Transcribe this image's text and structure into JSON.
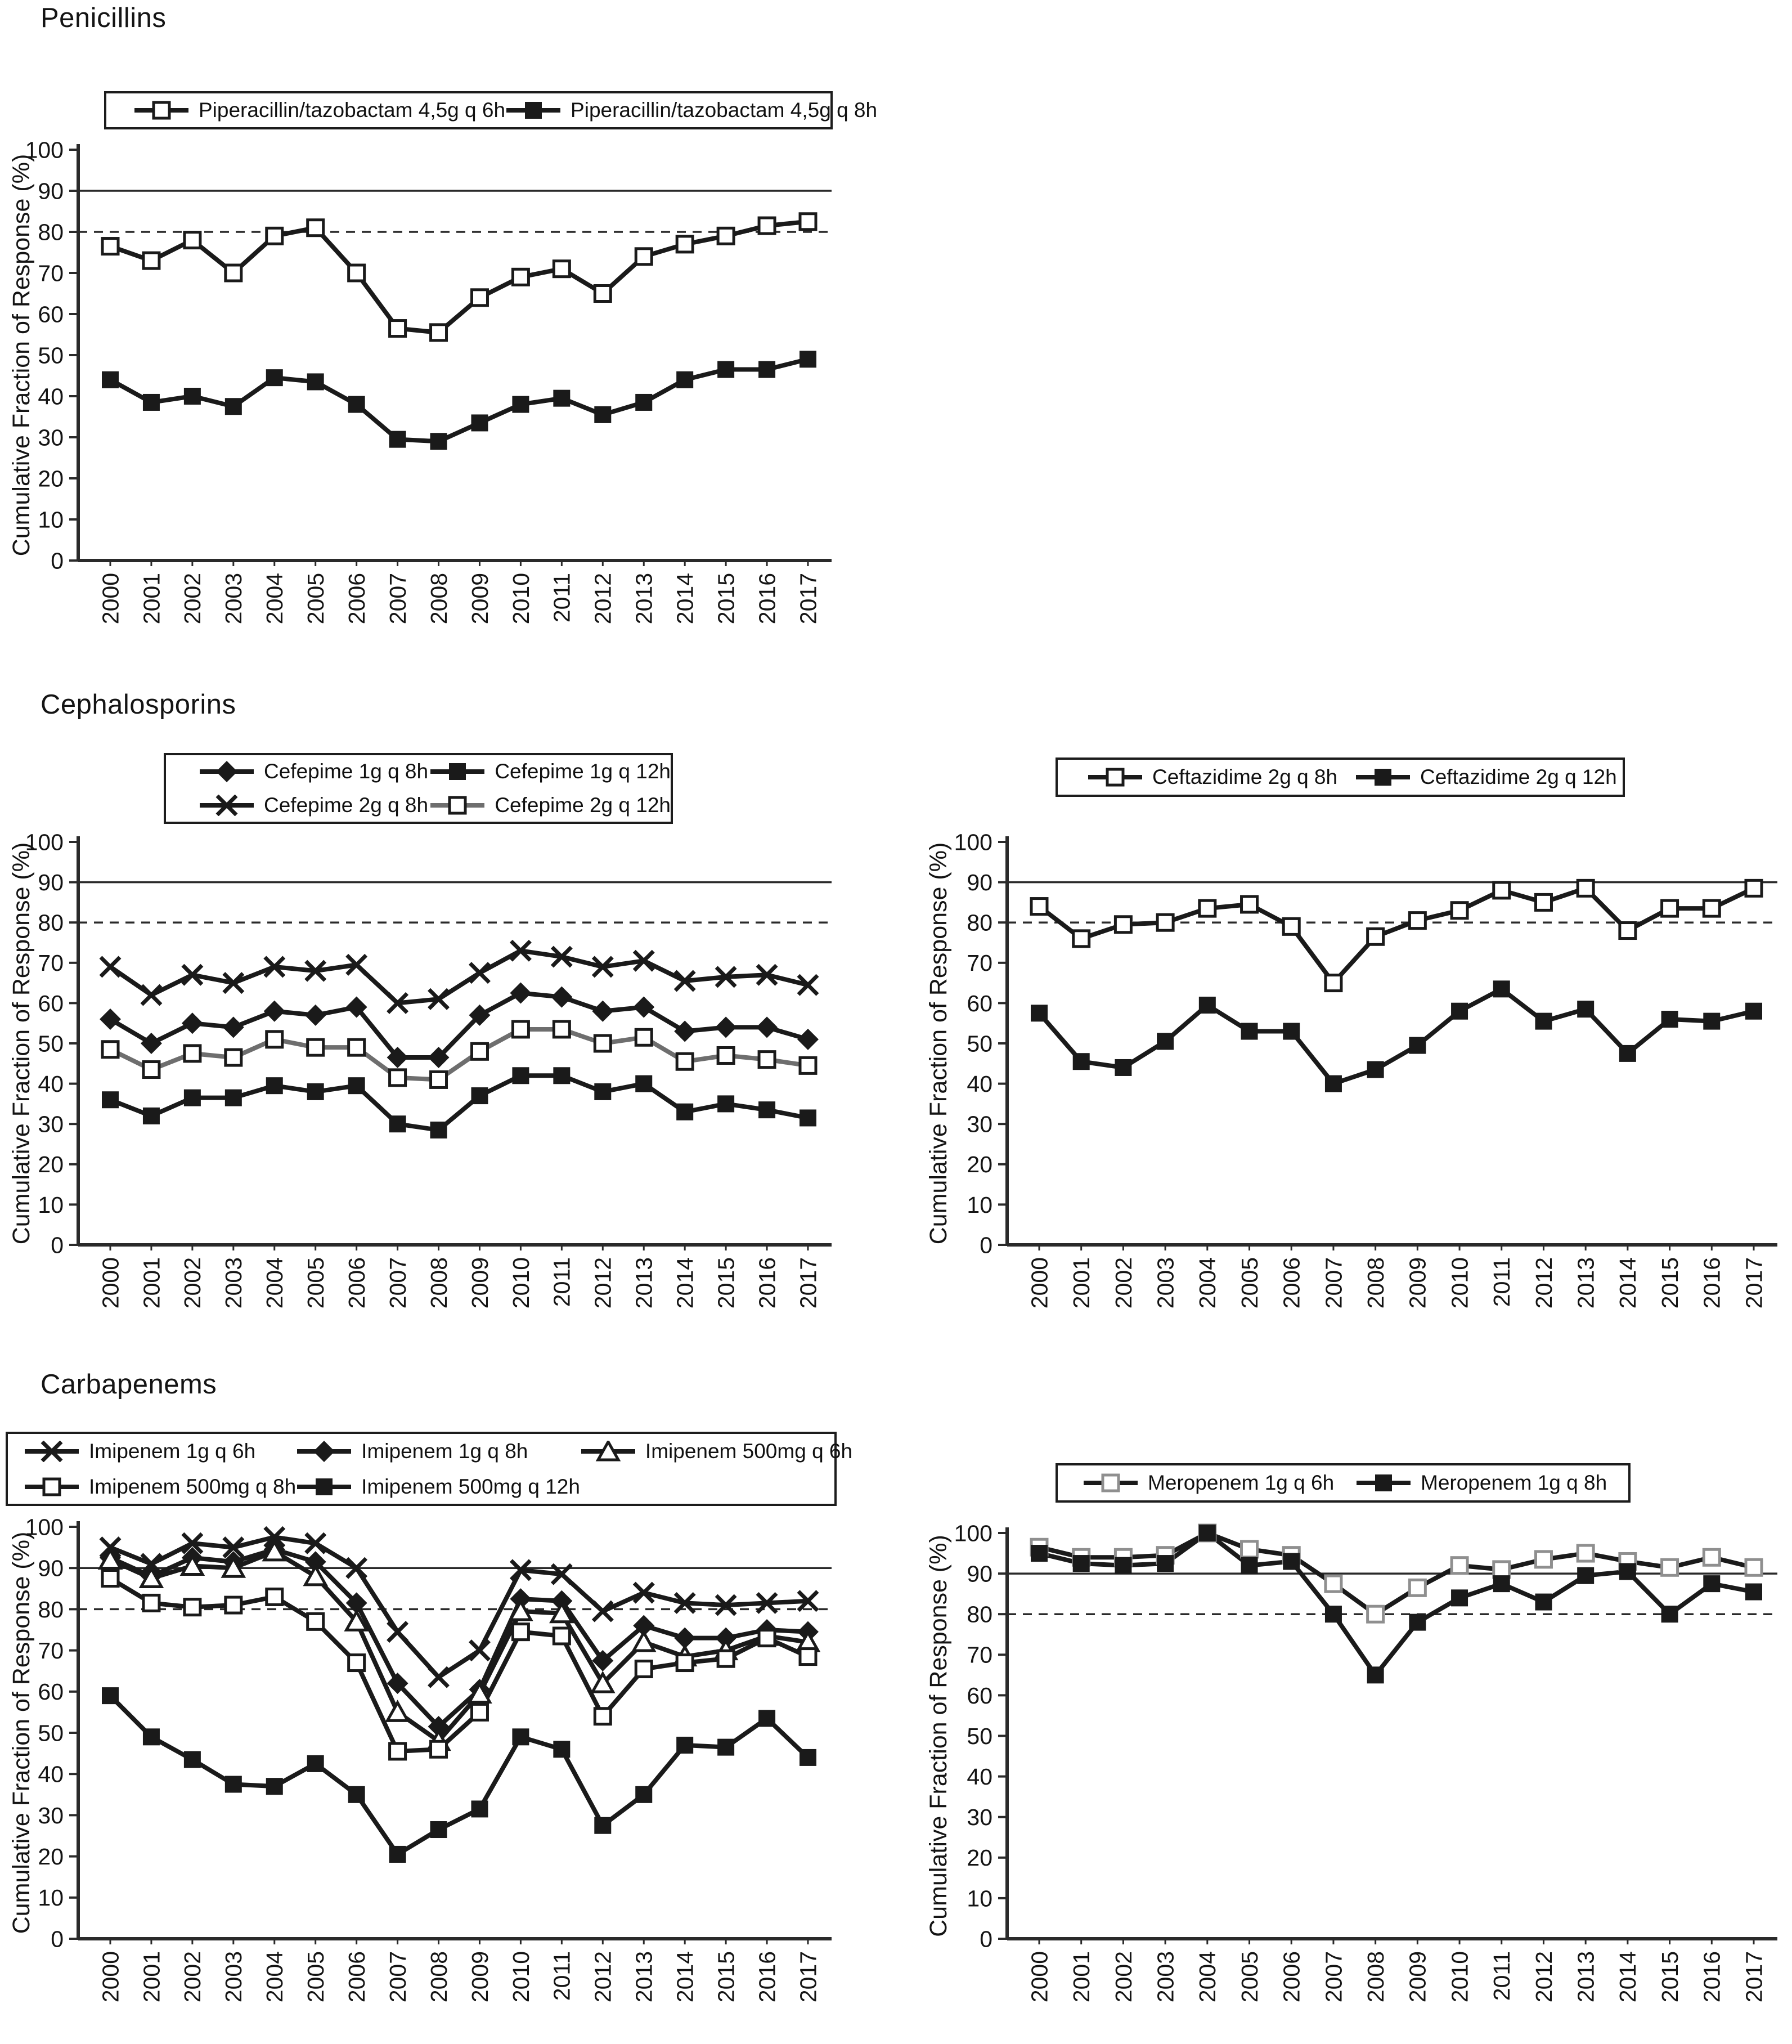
{
  "sections": [
    {
      "title": "Penicillins"
    },
    {
      "title": "Cephalosporins"
    },
    {
      "title": "Carbapenems"
    }
  ],
  "ylabel": "Cumulative Fraction of Response (%)",
  "years": [
    2000,
    2001,
    2002,
    2003,
    2004,
    2005,
    2006,
    2007,
    2008,
    2009,
    2010,
    2011,
    2012,
    2013,
    2014,
    2015,
    2016,
    2017
  ],
  "colors": {
    "line": "#1a1a1a",
    "gray_line": "#6e6e6e",
    "gray_marker": "#8f8f8f",
    "axis": "#2a2a2a"
  },
  "chart_data": [
    {
      "type": "line",
      "name": "penicillins-piperacillin-tazobactam",
      "section": "Penicillins",
      "ylabel": "Cumulative Fraction of Response (%)",
      "ylim": [
        0,
        100
      ],
      "ytick_step": 10,
      "grid": false,
      "legend_position": "top",
      "ref_lines": [
        {
          "y": 90,
          "style": "solid"
        },
        {
          "y": 80,
          "style": "dashed"
        }
      ],
      "series": [
        {
          "name": "Piperacillin/tazobactam 4,5g q 6h",
          "marker": "square-open",
          "line_color": "#1a1a1a",
          "marker_color": "#1a1a1a",
          "values": [
            76.5,
            73,
            78,
            70,
            79,
            81,
            70,
            56.5,
            55.5,
            64,
            69,
            71,
            65,
            74,
            77,
            79,
            81.5,
            82.5
          ]
        },
        {
          "name": "Piperacillin/tazobactam 4,5g q 8h",
          "marker": "square-filled",
          "line_color": "#1a1a1a",
          "marker_color": "#1a1a1a",
          "values": [
            44,
            38.5,
            40,
            37.5,
            44.5,
            43.5,
            38,
            29.5,
            29,
            33.5,
            38,
            39.5,
            35.5,
            38.5,
            44,
            46.5,
            46.5,
            49
          ]
        }
      ]
    },
    {
      "type": "line",
      "name": "cephalosporins-cefepime",
      "section": "Cephalosporins",
      "ylabel": "Cumulative Fraction of Response (%)",
      "ylim": [
        0,
        100
      ],
      "ytick_step": 10,
      "grid": false,
      "legend_position": "top",
      "ref_lines": [
        {
          "y": 90,
          "style": "solid"
        },
        {
          "y": 80,
          "style": "dashed"
        }
      ],
      "series": [
        {
          "name": "Cefepime 1g q 8h",
          "marker": "diamond-filled",
          "line_color": "#1a1a1a",
          "marker_color": "#1a1a1a",
          "values": [
            56,
            50,
            55,
            54,
            58,
            57,
            59,
            46.5,
            46.5,
            57,
            62.5,
            61.5,
            58,
            59,
            53,
            54,
            54,
            51
          ]
        },
        {
          "name": "Cefepime 1g q 12h",
          "marker": "square-filled",
          "line_color": "#1a1a1a",
          "marker_color": "#1a1a1a",
          "values": [
            36,
            32,
            36.5,
            36.5,
            39.5,
            38,
            39.5,
            30,
            28.5,
            37,
            42,
            42,
            38,
            40,
            33,
            35,
            33.5,
            31.5
          ]
        },
        {
          "name": "Cefepime 2g q 8h",
          "marker": "x-cross",
          "line_color": "#1a1a1a",
          "marker_color": "#1a1a1a",
          "values": [
            69,
            62,
            67,
            65,
            69,
            68,
            69.5,
            60,
            61,
            67.5,
            73,
            71.5,
            69,
            70.5,
            65.5,
            66.5,
            67,
            64.5
          ]
        },
        {
          "name": "Cefepime 2g q 12h",
          "marker": "square-open",
          "line_color": "#6e6e6e",
          "marker_color": "#1a1a1a",
          "values": [
            48.5,
            43.5,
            47.5,
            46.5,
            51,
            49,
            49,
            41.5,
            41,
            48,
            53.5,
            53.5,
            50,
            51.5,
            45.5,
            47,
            46,
            44.5
          ]
        }
      ]
    },
    {
      "type": "line",
      "name": "cephalosporins-ceftazidime",
      "section": "Cephalosporins",
      "ylabel": "Cumulative Fraction of Response (%)",
      "ylim": [
        0,
        100
      ],
      "ytick_step": 10,
      "grid": false,
      "legend_position": "top",
      "ref_lines": [
        {
          "y": 90,
          "style": "solid"
        },
        {
          "y": 80,
          "style": "dashed"
        }
      ],
      "series": [
        {
          "name": "Ceftazidime 2g q 8h",
          "marker": "square-open",
          "line_color": "#1a1a1a",
          "marker_color": "#1a1a1a",
          "values": [
            84,
            76,
            79.5,
            80,
            83.5,
            84.5,
            79,
            65,
            76.5,
            80.5,
            83,
            88,
            85,
            88.5,
            78,
            83.5,
            83.5,
            88.5
          ]
        },
        {
          "name": "Ceftazidime 2g q 12h",
          "marker": "square-filled",
          "line_color": "#1a1a1a",
          "marker_color": "#1a1a1a",
          "values": [
            57.5,
            45.5,
            44,
            50.5,
            59.5,
            53,
            53,
            40,
            43.5,
            49.5,
            58,
            63.5,
            55.5,
            58.5,
            47.5,
            56,
            55.5,
            58
          ]
        }
      ]
    },
    {
      "type": "line",
      "name": "carbapenems-imipenem",
      "section": "Carbapenems",
      "ylabel": "Cumulative Fraction of Response (%)",
      "ylim": [
        0,
        100
      ],
      "ytick_step": 10,
      "grid": false,
      "legend_position": "top",
      "ref_lines": [
        {
          "y": 90,
          "style": "solid"
        },
        {
          "y": 80,
          "style": "dashed"
        }
      ],
      "series": [
        {
          "name": "Imipenem 1g q 6h",
          "marker": "x-cross",
          "line_color": "#1a1a1a",
          "marker_color": "#1a1a1a",
          "values": [
            95,
            91,
            96,
            95,
            97.5,
            96,
            90,
            74.5,
            63.5,
            70,
            89.5,
            88.5,
            79.5,
            84,
            81.5,
            81,
            81.5,
            82
          ]
        },
        {
          "name": "Imipenem 1g q 8h",
          "marker": "diamond-filled",
          "line_color": "#1a1a1a",
          "marker_color": "#1a1a1a",
          "values": [
            92.5,
            88,
            92.5,
            91.5,
            94.5,
            91.5,
            81.5,
            62,
            51.5,
            60.5,
            82.5,
            82,
            67.5,
            76,
            73,
            73,
            75,
            74.5
          ]
        },
        {
          "name": "Imipenem 500mg q 6h",
          "marker": "triangle-open",
          "line_color": "#1a1a1a",
          "marker_color": "#1a1a1a",
          "values": [
            92,
            87.5,
            90.5,
            90,
            94,
            88,
            77,
            55,
            48,
            59.5,
            79.5,
            79,
            62,
            72,
            68.5,
            70,
            73.5,
            72
          ]
        },
        {
          "name": "Imipenem 500mg q 8h",
          "marker": "square-open",
          "line_color": "#1a1a1a",
          "marker_color": "#1a1a1a",
          "values": [
            87.5,
            81.5,
            80.5,
            81,
            83,
            77,
            67,
            45.5,
            46,
            55,
            74.5,
            73.5,
            54,
            65.5,
            67,
            68,
            73,
            68.5
          ]
        },
        {
          "name": "Imipenem 500mg q 12h",
          "marker": "square-filled",
          "line_color": "#1a1a1a",
          "marker_color": "#1a1a1a",
          "values": [
            59,
            49,
            43.5,
            37.5,
            37,
            42.5,
            35,
            20.5,
            26.5,
            31.5,
            49,
            46,
            27.5,
            35,
            47,
            46.5,
            53.5,
            44
          ]
        }
      ]
    },
    {
      "type": "line",
      "name": "carbapenems-meropenem",
      "section": "Carbapenems",
      "ylabel": "Cumulative Fraction of Response (%)",
      "ylim": [
        0,
        100
      ],
      "ytick_step": 10,
      "grid": false,
      "legend_position": "top",
      "ref_lines": [
        {
          "y": 90,
          "style": "solid"
        },
        {
          "y": 80,
          "style": "dashed"
        }
      ],
      "series": [
        {
          "name": "Meropenem 1g q 6h",
          "marker": "square-open",
          "line_color": "#1a1a1a",
          "marker_color": "#8f8f8f",
          "values": [
            96.5,
            94,
            94,
            94.5,
            100,
            96,
            94.5,
            87.5,
            80,
            86.5,
            92,
            91,
            93.5,
            95,
            93,
            91.5,
            94,
            91.5
          ]
        },
        {
          "name": "Meropenem 1g q 8h",
          "marker": "square-filled",
          "line_color": "#1a1a1a",
          "marker_color": "#1a1a1a",
          "values": [
            95,
            92.5,
            92,
            92.5,
            100,
            92,
            93,
            80,
            65,
            78,
            84,
            87.5,
            83,
            89.5,
            90.5,
            80,
            87.5,
            85.5
          ]
        }
      ]
    }
  ]
}
